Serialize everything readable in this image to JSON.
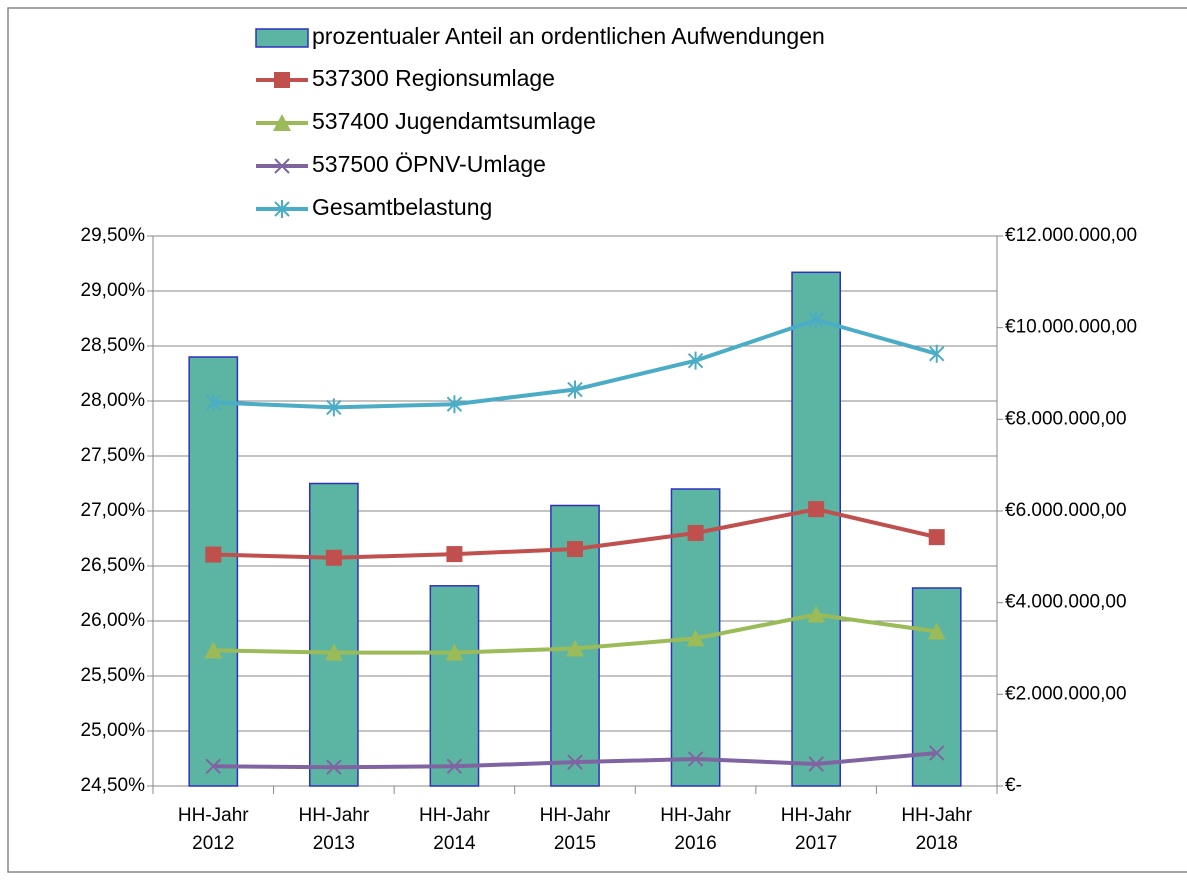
{
  "chart_data": {
    "type": "bar_line",
    "categories": [
      "HH-Jahr 2012",
      "HH-Jahr 2013",
      "HH-Jahr 2014",
      "HH-Jahr 2015",
      "HH-Jahr 2016",
      "HH-Jahr 2017",
      "HH-Jahr 2018"
    ],
    "series": [
      {
        "name": "prozentualer Anteil an ordentlichen Aufwendungen",
        "type": "bar",
        "color": "#5bb5a2",
        "edge": "#3030c0",
        "values": [
          28.4,
          27.25,
          26.32,
          27.05,
          27.2,
          29.17,
          26.3
        ]
      },
      {
        "name": "537300 Regionsumlage",
        "type": "line",
        "marker": "square",
        "axis": "y2",
        "color": "#c0504d",
        "values": [
          5050000,
          4980000,
          5060000,
          5170000,
          5520000,
          6040000,
          5430000
        ]
      },
      {
        "name": "537400 Jugendamtsumlage",
        "type": "line",
        "marker": "triangle",
        "axis": "y2",
        "color": "#9bbb59",
        "values": [
          2960000,
          2910000,
          2910000,
          3000000,
          3220000,
          3740000,
          3370000
        ]
      },
      {
        "name": "537500 ÖPNV-Umlage",
        "type": "line",
        "marker": "x",
        "axis": "y2",
        "color": "#8064a2",
        "values": [
          430000,
          410000,
          430000,
          520000,
          590000,
          480000,
          720000
        ]
      },
      {
        "name": "Gesamtbelastung",
        "type": "line",
        "marker": "star",
        "axis": "y2",
        "color": "#4bacc6",
        "values": [
          8370000,
          8260000,
          8330000,
          8650000,
          9280000,
          10170000,
          9430000
        ]
      }
    ],
    "ylim": [
      24.5,
      29.5
    ],
    "yticks": [
      {
        "value": 24.5,
        "label": "24,50%"
      },
      {
        "value": 25,
        "label": "25,00%"
      },
      {
        "value": 25.5,
        "label": "25,50%"
      },
      {
        "value": 26,
        "label": "26,00%"
      },
      {
        "value": 26.5,
        "label": "26,50%"
      },
      {
        "value": 27,
        "label": "27,00%"
      },
      {
        "value": 27.5,
        "label": "27,50%"
      },
      {
        "value": 28,
        "label": "28,00%"
      },
      {
        "value": 28.5,
        "label": "28,50%"
      },
      {
        "value": 29,
        "label": "29,00%"
      },
      {
        "value": 29.5,
        "label": "29,50%"
      }
    ],
    "y2lim": [
      0,
      12000000
    ],
    "y2ticks": [
      {
        "value": 0,
        "label": "€-"
      },
      {
        "value": 2000000,
        "label": "€2.000.000,00"
      },
      {
        "value": 4000000,
        "label": "€4.000.000,00"
      },
      {
        "value": 6000000,
        "label": "€6.000.000,00"
      },
      {
        "value": 8000000,
        "label": "€8.000.000,00"
      },
      {
        "value": 10000000,
        "label": "€10.000.000,00"
      },
      {
        "value": 12000000,
        "label": "€12.000.000,00"
      }
    ],
    "grid": true,
    "legend": "top"
  }
}
